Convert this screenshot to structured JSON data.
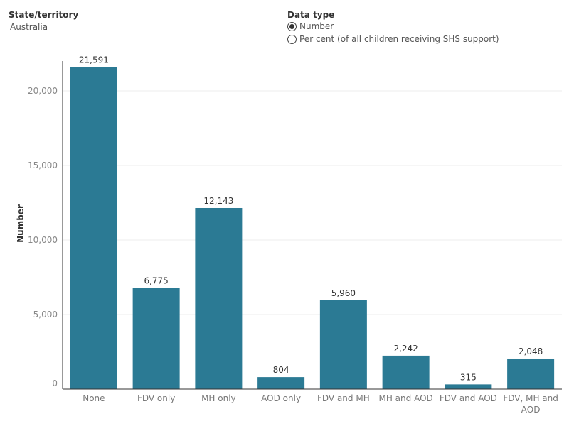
{
  "filters": {
    "state": {
      "title": "State/territory",
      "value": "Australia"
    },
    "data_type": {
      "title": "Data type",
      "options": [
        {
          "label": "Number",
          "selected": true
        },
        {
          "label": "Per cent (of all children receiving SHS support)",
          "selected": false
        }
      ]
    }
  },
  "chart_data": {
    "type": "bar",
    "title": "",
    "xlabel": "",
    "ylabel": "Number",
    "ylim": [
      0,
      22000
    ],
    "yticks": [
      0,
      5000,
      10000,
      15000,
      20000
    ],
    "ytick_labels": [
      "0",
      "5,000",
      "10,000",
      "15,000",
      "20,000"
    ],
    "grid": true,
    "bar_color": "#2b7a94",
    "categories": [
      "None",
      "FDV only",
      "MH only",
      "AOD only",
      "FDV and MH",
      "MH and AOD",
      "FDV and AOD",
      "FDV, MH and AOD"
    ],
    "values": [
      21591,
      6775,
      12143,
      804,
      5960,
      2242,
      315,
      2048
    ],
    "value_labels": [
      "21,591",
      "6,775",
      "12,143",
      "804",
      "5,960",
      "2,242",
      "315",
      "2,048"
    ]
  }
}
